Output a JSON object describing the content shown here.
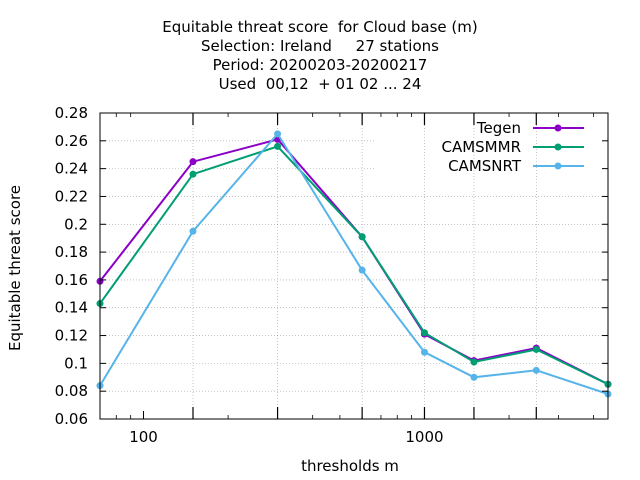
{
  "chart_data": {
    "type": "line",
    "title_lines": [
      "Equitable threat score  for Cloud base (m)",
      "Selection: Ireland     27 stations",
      "Period: 20200203-20200217",
      "Used  00,12  + 01 02 ... 24"
    ],
    "xlabel": "thresholds m",
    "ylabel": "Equitable threat score",
    "x_scale": "log",
    "xlim": [
      70,
      4500
    ],
    "ylim": [
      0.06,
      0.28
    ],
    "x_ticks": [
      100,
      1000
    ],
    "x_tick_labels": [
      "100",
      "1000"
    ],
    "y_ticks": [
      0.06,
      0.08,
      0.1,
      0.12,
      0.14,
      0.16,
      0.18,
      0.2,
      0.22,
      0.24,
      0.26,
      0.28
    ],
    "y_tick_labels": [
      "0.06",
      "0.08",
      "0.1",
      "0.12",
      "0.14",
      "0.16",
      "0.18",
      "0.2",
      "0.22",
      "0.24",
      "0.26",
      "0.28"
    ],
    "grid": true,
    "legend_position": "top-right",
    "x": [
      70,
      150,
      300,
      600,
      1000,
      1500,
      2500,
      4500
    ],
    "series": [
      {
        "name": "Tegen",
        "color": "#8b00c8",
        "values": [
          0.159,
          0.245,
          0.261,
          0.191,
          0.121,
          0.102,
          0.111,
          0.085
        ]
      },
      {
        "name": "CAMSMMR",
        "color": "#009e73",
        "values": [
          0.143,
          0.236,
          0.256,
          0.191,
          0.122,
          0.101,
          0.11,
          0.085
        ]
      },
      {
        "name": "CAMSNRT",
        "color": "#56b4e9",
        "values": [
          0.084,
          0.195,
          0.265,
          0.167,
          0.108,
          0.09,
          0.095,
          0.078
        ]
      }
    ]
  }
}
